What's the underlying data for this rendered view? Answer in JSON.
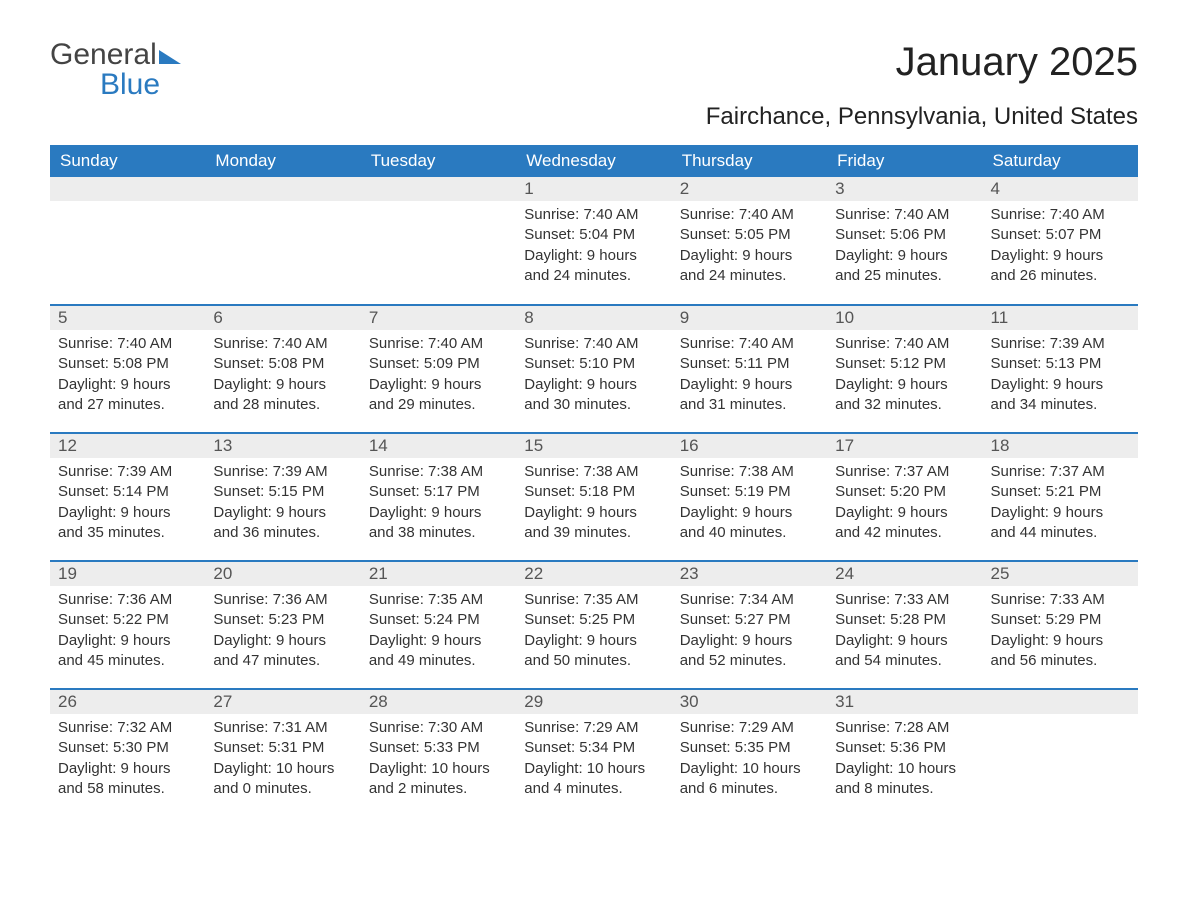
{
  "brand": {
    "part1": "General",
    "part2": "Blue"
  },
  "title": "January 2025",
  "location": "Fairchance, Pennsylvania, United States",
  "colors": {
    "header_bg": "#2a7ac0",
    "header_text": "#ffffff",
    "daynum_bg": "#ededed",
    "daynum_text": "#555555",
    "body_text": "#333333",
    "rule": "#2a7ac0",
    "page_bg": "#ffffff"
  },
  "fonts": {
    "title_pt": 40,
    "location_pt": 24,
    "header_pt": 17,
    "body_pt": 15
  },
  "weekdays": [
    "Sunday",
    "Monday",
    "Tuesday",
    "Wednesday",
    "Thursday",
    "Friday",
    "Saturday"
  ],
  "weeks": [
    [
      null,
      null,
      null,
      {
        "n": "1",
        "sunrise": "Sunrise: 7:40 AM",
        "sunset": "Sunset: 5:04 PM",
        "day1": "Daylight: 9 hours",
        "day2": "and 24 minutes."
      },
      {
        "n": "2",
        "sunrise": "Sunrise: 7:40 AM",
        "sunset": "Sunset: 5:05 PM",
        "day1": "Daylight: 9 hours",
        "day2": "and 24 minutes."
      },
      {
        "n": "3",
        "sunrise": "Sunrise: 7:40 AM",
        "sunset": "Sunset: 5:06 PM",
        "day1": "Daylight: 9 hours",
        "day2": "and 25 minutes."
      },
      {
        "n": "4",
        "sunrise": "Sunrise: 7:40 AM",
        "sunset": "Sunset: 5:07 PM",
        "day1": "Daylight: 9 hours",
        "day2": "and 26 minutes."
      }
    ],
    [
      {
        "n": "5",
        "sunrise": "Sunrise: 7:40 AM",
        "sunset": "Sunset: 5:08 PM",
        "day1": "Daylight: 9 hours",
        "day2": "and 27 minutes."
      },
      {
        "n": "6",
        "sunrise": "Sunrise: 7:40 AM",
        "sunset": "Sunset: 5:08 PM",
        "day1": "Daylight: 9 hours",
        "day2": "and 28 minutes."
      },
      {
        "n": "7",
        "sunrise": "Sunrise: 7:40 AM",
        "sunset": "Sunset: 5:09 PM",
        "day1": "Daylight: 9 hours",
        "day2": "and 29 minutes."
      },
      {
        "n": "8",
        "sunrise": "Sunrise: 7:40 AM",
        "sunset": "Sunset: 5:10 PM",
        "day1": "Daylight: 9 hours",
        "day2": "and 30 minutes."
      },
      {
        "n": "9",
        "sunrise": "Sunrise: 7:40 AM",
        "sunset": "Sunset: 5:11 PM",
        "day1": "Daylight: 9 hours",
        "day2": "and 31 minutes."
      },
      {
        "n": "10",
        "sunrise": "Sunrise: 7:40 AM",
        "sunset": "Sunset: 5:12 PM",
        "day1": "Daylight: 9 hours",
        "day2": "and 32 minutes."
      },
      {
        "n": "11",
        "sunrise": "Sunrise: 7:39 AM",
        "sunset": "Sunset: 5:13 PM",
        "day1": "Daylight: 9 hours",
        "day2": "and 34 minutes."
      }
    ],
    [
      {
        "n": "12",
        "sunrise": "Sunrise: 7:39 AM",
        "sunset": "Sunset: 5:14 PM",
        "day1": "Daylight: 9 hours",
        "day2": "and 35 minutes."
      },
      {
        "n": "13",
        "sunrise": "Sunrise: 7:39 AM",
        "sunset": "Sunset: 5:15 PM",
        "day1": "Daylight: 9 hours",
        "day2": "and 36 minutes."
      },
      {
        "n": "14",
        "sunrise": "Sunrise: 7:38 AM",
        "sunset": "Sunset: 5:17 PM",
        "day1": "Daylight: 9 hours",
        "day2": "and 38 minutes."
      },
      {
        "n": "15",
        "sunrise": "Sunrise: 7:38 AM",
        "sunset": "Sunset: 5:18 PM",
        "day1": "Daylight: 9 hours",
        "day2": "and 39 minutes."
      },
      {
        "n": "16",
        "sunrise": "Sunrise: 7:38 AM",
        "sunset": "Sunset: 5:19 PM",
        "day1": "Daylight: 9 hours",
        "day2": "and 40 minutes."
      },
      {
        "n": "17",
        "sunrise": "Sunrise: 7:37 AM",
        "sunset": "Sunset: 5:20 PM",
        "day1": "Daylight: 9 hours",
        "day2": "and 42 minutes."
      },
      {
        "n": "18",
        "sunrise": "Sunrise: 7:37 AM",
        "sunset": "Sunset: 5:21 PM",
        "day1": "Daylight: 9 hours",
        "day2": "and 44 minutes."
      }
    ],
    [
      {
        "n": "19",
        "sunrise": "Sunrise: 7:36 AM",
        "sunset": "Sunset: 5:22 PM",
        "day1": "Daylight: 9 hours",
        "day2": "and 45 minutes."
      },
      {
        "n": "20",
        "sunrise": "Sunrise: 7:36 AM",
        "sunset": "Sunset: 5:23 PM",
        "day1": "Daylight: 9 hours",
        "day2": "and 47 minutes."
      },
      {
        "n": "21",
        "sunrise": "Sunrise: 7:35 AM",
        "sunset": "Sunset: 5:24 PM",
        "day1": "Daylight: 9 hours",
        "day2": "and 49 minutes."
      },
      {
        "n": "22",
        "sunrise": "Sunrise: 7:35 AM",
        "sunset": "Sunset: 5:25 PM",
        "day1": "Daylight: 9 hours",
        "day2": "and 50 minutes."
      },
      {
        "n": "23",
        "sunrise": "Sunrise: 7:34 AM",
        "sunset": "Sunset: 5:27 PM",
        "day1": "Daylight: 9 hours",
        "day2": "and 52 minutes."
      },
      {
        "n": "24",
        "sunrise": "Sunrise: 7:33 AM",
        "sunset": "Sunset: 5:28 PM",
        "day1": "Daylight: 9 hours",
        "day2": "and 54 minutes."
      },
      {
        "n": "25",
        "sunrise": "Sunrise: 7:33 AM",
        "sunset": "Sunset: 5:29 PM",
        "day1": "Daylight: 9 hours",
        "day2": "and 56 minutes."
      }
    ],
    [
      {
        "n": "26",
        "sunrise": "Sunrise: 7:32 AM",
        "sunset": "Sunset: 5:30 PM",
        "day1": "Daylight: 9 hours",
        "day2": "and 58 minutes."
      },
      {
        "n": "27",
        "sunrise": "Sunrise: 7:31 AM",
        "sunset": "Sunset: 5:31 PM",
        "day1": "Daylight: 10 hours",
        "day2": "and 0 minutes."
      },
      {
        "n": "28",
        "sunrise": "Sunrise: 7:30 AM",
        "sunset": "Sunset: 5:33 PM",
        "day1": "Daylight: 10 hours",
        "day2": "and 2 minutes."
      },
      {
        "n": "29",
        "sunrise": "Sunrise: 7:29 AM",
        "sunset": "Sunset: 5:34 PM",
        "day1": "Daylight: 10 hours",
        "day2": "and 4 minutes."
      },
      {
        "n": "30",
        "sunrise": "Sunrise: 7:29 AM",
        "sunset": "Sunset: 5:35 PM",
        "day1": "Daylight: 10 hours",
        "day2": "and 6 minutes."
      },
      {
        "n": "31",
        "sunrise": "Sunrise: 7:28 AM",
        "sunset": "Sunset: 5:36 PM",
        "day1": "Daylight: 10 hours",
        "day2": "and 8 minutes."
      },
      null
    ]
  ]
}
